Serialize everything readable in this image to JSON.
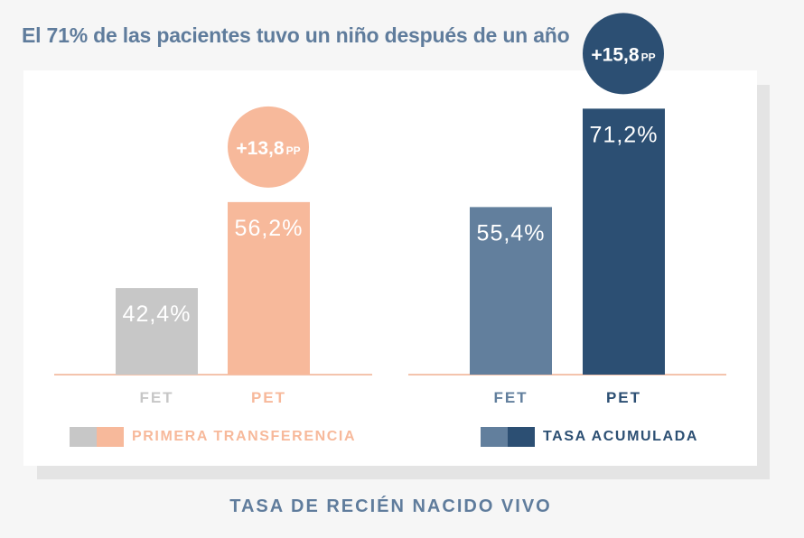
{
  "headline": "El 71% de las pacientes tuvo un niño después de un año",
  "footer": "TASA DE RECIÉN NACIDO VIVO",
  "chart_data": [
    {
      "type": "bar",
      "group": "PRIMERA TRANSFERENCIA",
      "categories": [
        "FET",
        "PET"
      ],
      "values": [
        42.4,
        56.2
      ],
      "value_labels": [
        "42,4%",
        "56,2%"
      ],
      "colors": [
        "#c7c7c7",
        "#f7b99b"
      ],
      "label_colors": [
        "#c7c7c7",
        "#f7b99b"
      ],
      "difference": {
        "value": "+13,8",
        "unit": "PP",
        "color": "#f7b99b"
      },
      "legend": {
        "label": "PRIMERA TRANSFERENCIA",
        "color": "#f7b99b"
      },
      "ylim": [
        0,
        100
      ]
    },
    {
      "type": "bar",
      "group": "TASA ACUMULADA",
      "categories": [
        "FET",
        "PET"
      ],
      "values": [
        55.4,
        71.2
      ],
      "value_labels": [
        "55,4%",
        "71,2%"
      ],
      "colors": [
        "#627f9d",
        "#2c4f73"
      ],
      "label_colors": [
        "#627f9d",
        "#2c4f73"
      ],
      "difference": {
        "value": "+15,8",
        "unit": "PP",
        "color": "#2c4f73"
      },
      "legend": {
        "label": "TASA ACUMULADA",
        "color": "#2c4f73"
      },
      "ylim": [
        0,
        100
      ]
    }
  ],
  "colors": {
    "axis": "#f4c4ad",
    "text_accent": "#5f7c9c"
  }
}
